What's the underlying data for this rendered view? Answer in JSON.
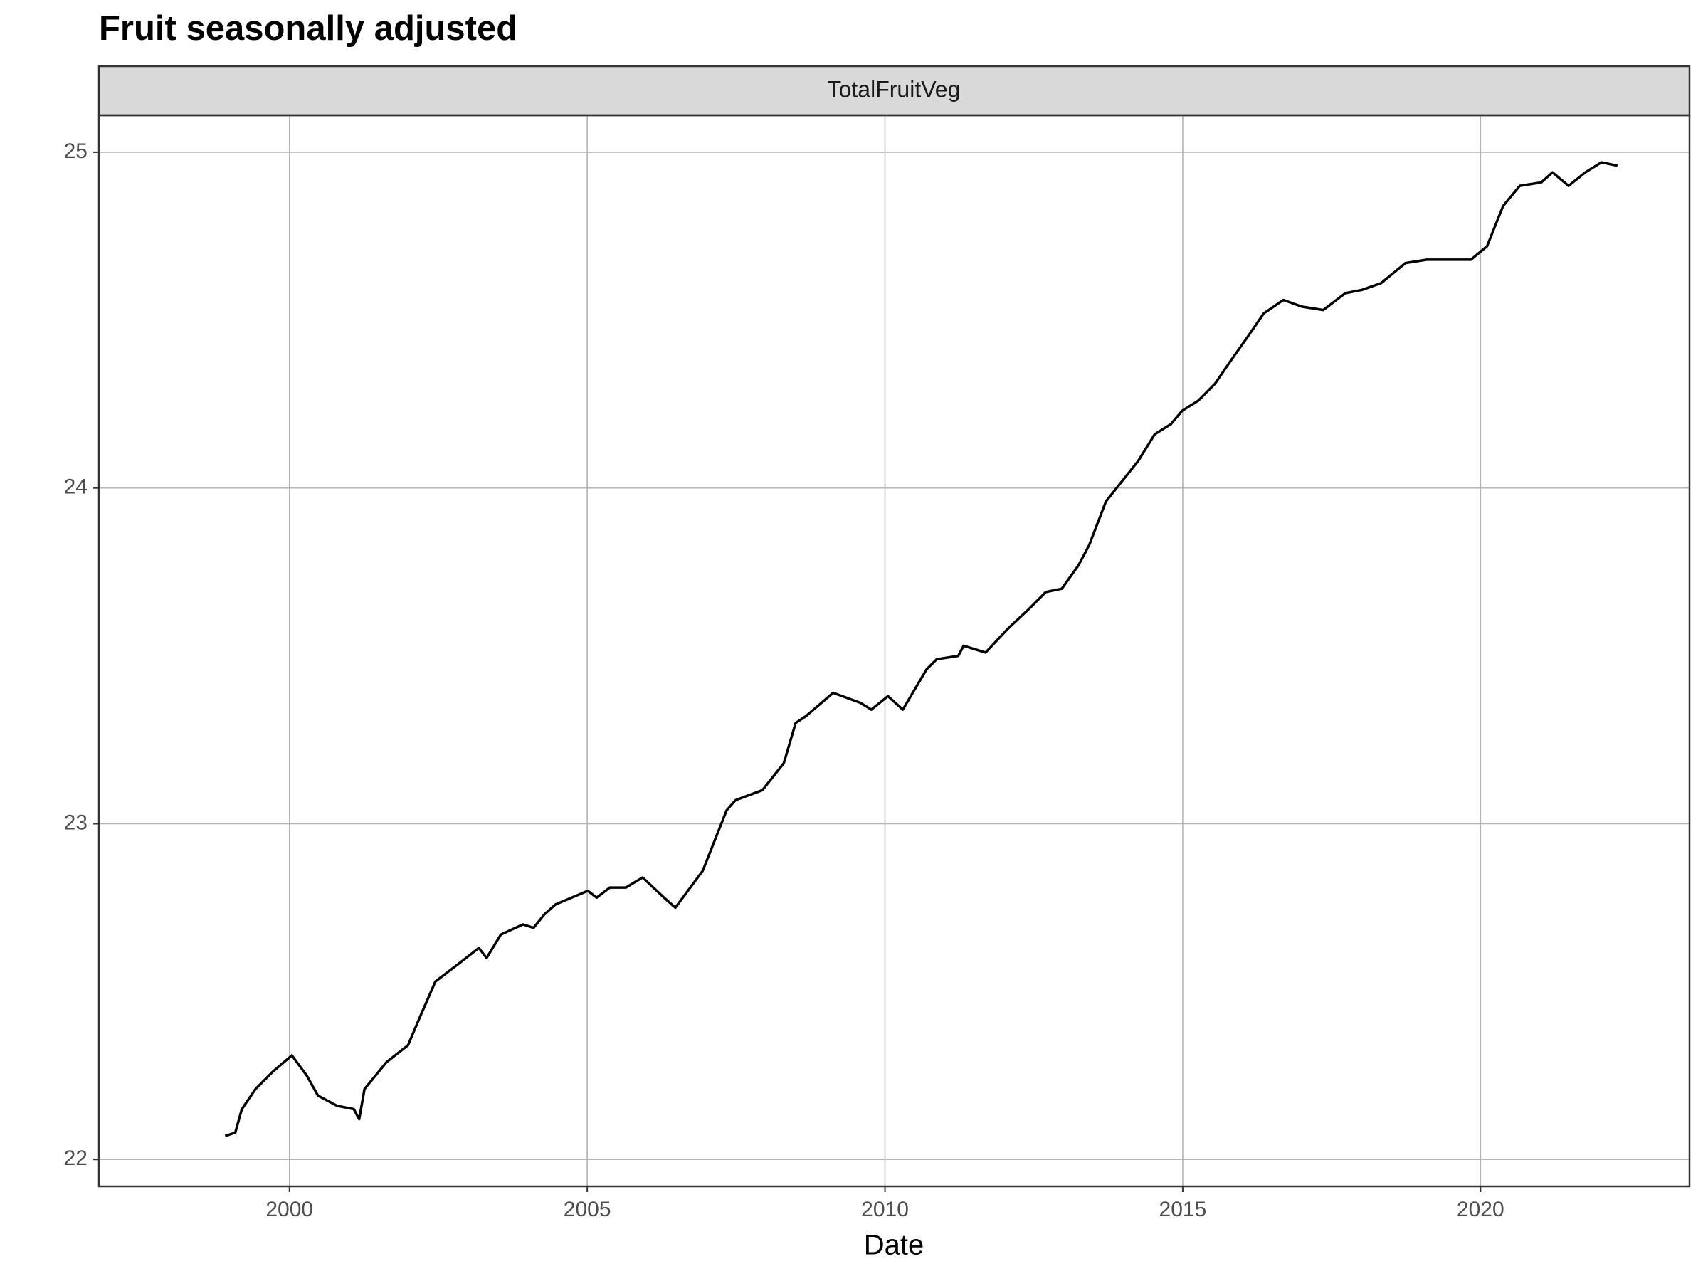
{
  "chart_data": {
    "type": "line",
    "title": "Fruit seasonally adjusted",
    "strip": "TotalFruitVeg",
    "xlabel": "Date",
    "x": [
      1998.92,
      1999.09,
      1999.2,
      1999.43,
      1999.71,
      2000.04,
      2000.29,
      2000.48,
      2000.8,
      2001.08,
      2001.17,
      2001.26,
      2001.63,
      2001.99,
      2002.18,
      2002.45,
      2002.82,
      2003.18,
      2003.31,
      2003.55,
      2003.92,
      2004.1,
      2004.28,
      2004.47,
      2004.74,
      2005.01,
      2005.16,
      2005.38,
      2005.65,
      2005.93,
      2006.11,
      2006.29,
      2006.48,
      2006.94,
      2007.34,
      2007.49,
      2007.94,
      2008.3,
      2008.5,
      2008.67,
      2009.13,
      2009.59,
      2009.77,
      2010.05,
      2010.3,
      2010.7,
      2010.87,
      2011.23,
      2011.32,
      2011.69,
      2012.06,
      2012.42,
      2012.7,
      2012.97,
      2013.25,
      2013.43,
      2013.71,
      2013.98,
      2014.25,
      2014.53,
      2014.8,
      2014.99,
      2015.26,
      2015.54,
      2015.81,
      2016.09,
      2016.36,
      2016.69,
      2017.0,
      2017.36,
      2017.73,
      2018.01,
      2018.33,
      2018.74,
      2019.1,
      2019.47,
      2019.84,
      2020.11,
      2020.38,
      2020.66,
      2021.02,
      2021.21,
      2021.48,
      2021.76,
      2022.03,
      2022.3
    ],
    "values": [
      22.07,
      22.08,
      22.15,
      22.21,
      22.26,
      22.31,
      22.25,
      22.19,
      22.16,
      22.15,
      22.12,
      22.21,
      22.29,
      22.34,
      22.42,
      22.53,
      22.58,
      22.63,
      22.6,
      22.67,
      22.7,
      22.69,
      22.73,
      22.76,
      22.78,
      22.8,
      22.78,
      22.81,
      22.81,
      22.84,
      22.81,
      22.78,
      22.75,
      22.86,
      23.04,
      23.07,
      23.1,
      23.18,
      23.3,
      23.32,
      23.39,
      23.36,
      23.34,
      23.38,
      23.34,
      23.46,
      23.49,
      23.5,
      23.53,
      23.51,
      23.58,
      23.64,
      23.69,
      23.7,
      23.77,
      23.83,
      23.96,
      24.02,
      24.08,
      24.16,
      24.19,
      24.23,
      24.26,
      24.31,
      24.38,
      24.45,
      24.52,
      24.56,
      24.54,
      24.53,
      24.58,
      24.59,
      24.61,
      24.67,
      24.68,
      24.68,
      24.68,
      24.72,
      24.84,
      24.9,
      24.91,
      24.94,
      24.9,
      24.94,
      24.97,
      24.96
    ],
    "color": "#000000",
    "xlim": [
      1996.8,
      2023.51
    ],
    "xticks": [
      2000,
      2005,
      2010,
      2015,
      2020
    ],
    "ylim": [
      21.92,
      25.11
    ],
    "yticks": [
      22,
      23,
      24,
      25
    ],
    "grid": true
  }
}
